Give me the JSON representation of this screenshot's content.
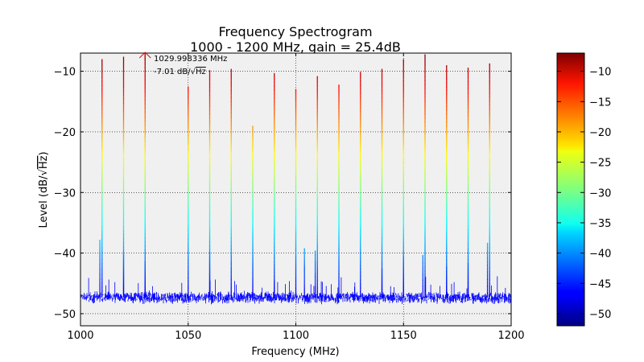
{
  "chart_data": {
    "type": "line",
    "title": "Frequency Spectrogram",
    "subtitle": "1000 - 1200 MHz, gain = 25.4dB",
    "xlabel": "Frequency (MHz)",
    "ylabel_prefix": "Level (dB/",
    "ylabel_radical": "√",
    "ylabel_unit": "Hz",
    "ylabel_suffix": ")",
    "xlim": [
      1000,
      1200
    ],
    "ylim": [
      -52,
      -7
    ],
    "xticks": [
      "1000",
      "1050",
      "1100",
      "1150",
      "1200"
    ],
    "yticks": [
      "−10",
      "−20",
      "−30",
      "−40",
      "−50"
    ],
    "grid": true,
    "noise_floor": -47.3,
    "peaks": [
      {
        "x": 1010,
        "y": -8.0
      },
      {
        "x": 1020,
        "y": -7.6
      },
      {
        "x": 1030,
        "y": -7.0
      },
      {
        "x": 1050,
        "y": -12.5
      },
      {
        "x": 1060,
        "y": -9.8
      },
      {
        "x": 1070,
        "y": -9.6
      },
      {
        "x": 1080,
        "y": -19.0
      },
      {
        "x": 1090,
        "y": -10.3
      },
      {
        "x": 1100,
        "y": -12.9
      },
      {
        "x": 1110,
        "y": -10.8
      },
      {
        "x": 1120,
        "y": -12.2
      },
      {
        "x": 1130,
        "y": -10.1
      },
      {
        "x": 1140,
        "y": -9.6
      },
      {
        "x": 1150,
        "y": -8.0
      },
      {
        "x": 1160,
        "y": -7.2
      },
      {
        "x": 1170,
        "y": -9.0
      },
      {
        "x": 1180,
        "y": -9.4
      },
      {
        "x": 1190,
        "y": -8.7
      }
    ],
    "spurs": [
      {
        "x": 1009,
        "y": -37.8
      },
      {
        "x": 1020,
        "y": -40.2
      },
      {
        "x": 1030,
        "y": -41.3
      },
      {
        "x": 1060,
        "y": -39.8
      },
      {
        "x": 1090,
        "y": -44.5
      },
      {
        "x": 1104,
        "y": -39.2
      },
      {
        "x": 1109,
        "y": -39.6
      },
      {
        "x": 1140,
        "y": -42.6
      },
      {
        "x": 1150,
        "y": -40.5
      },
      {
        "x": 1159,
        "y": -40.3
      },
      {
        "x": 1170,
        "y": -42.2
      },
      {
        "x": 1180,
        "y": -41.6
      },
      {
        "x": 1189,
        "y": -38.3
      }
    ],
    "marker": {
      "x": 1029.998336,
      "y": -7.01,
      "freq_label": "1029.998336 MHz",
      "level_prefix": "-7.01 dB/",
      "level_radical": "√",
      "level_unit": "Hz"
    },
    "colorbar": {
      "range": [
        -52,
        -7
      ],
      "ticks": [
        "−10",
        "−15",
        "−20",
        "−25",
        "−30",
        "−35",
        "−40",
        "−45",
        "−50"
      ],
      "colormap": "jet"
    },
    "colors": {
      "plot_background": "#f0f0f0",
      "noise": "#0000ff",
      "grid": "#000000"
    }
  }
}
